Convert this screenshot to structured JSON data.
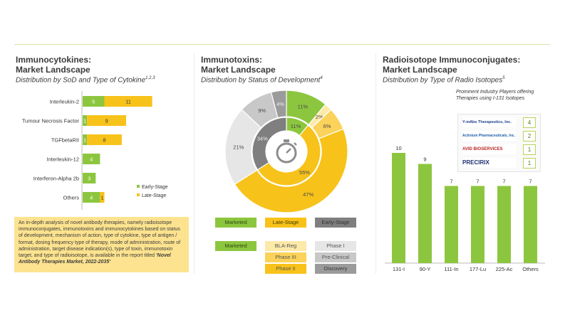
{
  "panels": [
    {
      "title_line1": "Immunocytokines:",
      "title_line2": "Market Landscape",
      "subtitle": "Distribution by SoD and Type of Cytokine",
      "sup": "1,2,3"
    },
    {
      "title_line1": "Immunotoxins:",
      "title_line2": "Market Landscape",
      "subtitle": "Distribution by Status of Development",
      "sup": "4"
    },
    {
      "title_line1": "Radioisotope Immunoconjugates:",
      "title_line2": "Market Landscape",
      "subtitle": "Distribution by Type of Radio Isotopes",
      "sup": "5"
    }
  ],
  "colors": {
    "green": "#8cc63f",
    "yellow": "#f7c21a",
    "gray_dark": "#7f7f7f",
    "gray_light": "#c8c8c8",
    "note_bg": "#fde38f"
  },
  "icons": {
    "center": "stopwatch-icon"
  },
  "note": {
    "text": "An in-depth analysis of novel antibody therapies, namely radioisotope immunoconjugates, immunotoxins and immunocytokines based on status of development, mechanism of action, type of cytokine, type of antigen / format, dosing frequency type of therapy, mode of administration, route of administration, target disease indication(s), type of toxin, immunotoxin target, and type of radioisotope, is available in the report titled ",
    "report": "'Novel Antibody Therapies Market, 2022-2035'"
  },
  "donut_legend_top": [
    "Marketed",
    "Late-Stage",
    "Early-Stage"
  ],
  "donut_legend_bottom": {
    "marketed": "Marketed",
    "late": [
      "BLA-Reg",
      "Phase III",
      "Phase II"
    ],
    "early": [
      "Phase I",
      "Pre-Clinical",
      "Discovery"
    ]
  },
  "players": {
    "caption": "Prominent Industry Players offering Therapies using I-131 Isotopes",
    "items": [
      {
        "name": "Y-mAbs Therapeutics, Inc.",
        "count": "4"
      },
      {
        "name": "Actinium Pharmaceuticals, Inc.",
        "count": "2"
      },
      {
        "name": "AVID BIOSERVICES",
        "count": "1"
      },
      {
        "name": "PRECIRIX",
        "count": "1"
      }
    ]
  },
  "chart_data": [
    {
      "type": "bar",
      "orientation": "horizontal",
      "stacked": true,
      "categories": [
        "Interleukin-2",
        "Tumour Necrosis Factor",
        "TGFbetaRII",
        "Interleukin-12",
        "Interferon-Alpha 2b",
        "Others"
      ],
      "series": [
        {
          "name": "Early-Stage",
          "values": [
            5,
            1,
            1,
            4,
            3,
            4
          ]
        },
        {
          "name": "Late-Stage",
          "values": [
            11,
            9,
            8,
            0,
            0,
            1
          ]
        }
      ],
      "legend": "right"
    },
    {
      "type": "pie",
      "variant": "nested-donut",
      "rings": [
        {
          "name": "outer",
          "slices": [
            {
              "label": "Marketed",
              "value": 11
            },
            {
              "label": "BLA-Reg",
              "value": 2
            },
            {
              "label": "Phase III",
              "value": 6
            },
            {
              "label": "Phase II",
              "value": 47
            },
            {
              "label": "Phase I",
              "value": 21
            },
            {
              "label": "Pre-Clinical",
              "value": 9
            },
            {
              "label": "Discovery",
              "value": 4
            }
          ]
        },
        {
          "name": "inner",
          "slices": [
            {
              "label": "Marketed",
              "value": 11
            },
            {
              "label": "Late-Stage",
              "value": 55
            },
            {
              "label": "Early-Stage",
              "value": 34
            }
          ]
        }
      ],
      "value_suffix": "%"
    },
    {
      "type": "bar",
      "categories": [
        "131-I",
        "90-Y",
        "111-In",
        "177-Lu",
        "225-Ac",
        "Others"
      ],
      "values": [
        10,
        9,
        7,
        7,
        7,
        7
      ],
      "ylim": [
        0,
        10
      ]
    }
  ]
}
